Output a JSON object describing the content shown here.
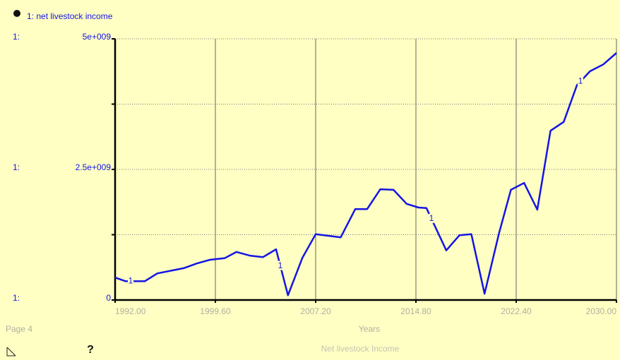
{
  "chart_data": {
    "type": "line",
    "page_label": "Page 4",
    "xlabel": "Years",
    "subtitle": "Net livestock Income",
    "help_icon": "?",
    "axis_prefix": "1:",
    "x": [
      1992.0,
      1992.8,
      1994.25,
      1995.2,
      1997.2,
      1998.2,
      1999.2,
      2000.3,
      2001.2,
      2002.2,
      2003.2,
      2004.2,
      2005.1,
      2006.2,
      2007.2,
      2009.1,
      2010.2,
      2011.1,
      2012.1,
      2013.1,
      2014.1,
      2015.0,
      2015.6,
      2017.1,
      2018.1,
      2019.0,
      2020.0,
      2021.1,
      2022.0,
      2023.0,
      2024.0,
      2025.0,
      2026.0,
      2027.0,
      2028.0,
      2029.0,
      2030.0
    ],
    "series": [
      {
        "name": "1: net  livestock income",
        "id": "1",
        "color": "#1414e6",
        "values": [
          430000000,
          360000000,
          360000000,
          510000000,
          610000000,
          700000000,
          770000000,
          800000000,
          920000000,
          850000000,
          820000000,
          970000000,
          90000000,
          810000000,
          1260000000,
          1200000000,
          1740000000,
          1740000000,
          2120000000,
          2110000000,
          1840000000,
          1770000000,
          1760000000,
          950000000,
          1240000000,
          1260000000,
          120000000,
          1280000000,
          2110000000,
          2240000000,
          1730000000,
          3240000000,
          3410000000,
          4110000000,
          4380000000,
          4510000000,
          4730000000
        ]
      }
    ],
    "xlim": [
      1992.0,
      2030.0
    ],
    "xticks": [
      {
        "value": 1992.0,
        "label": "1992.00"
      },
      {
        "value": 1999.6,
        "label": "1999.60"
      },
      {
        "value": 2007.2,
        "label": "2007.20"
      },
      {
        "value": 2014.8,
        "label": "2014.80"
      },
      {
        "value": 2022.4,
        "label": "2022.40"
      },
      {
        "value": 2030.0,
        "label": "2030.00"
      }
    ],
    "ylim": [
      0,
      5000000000
    ],
    "yticks": [
      0,
      {
        "value": 2500000000,
        "label": "2.5e+009"
      },
      {
        "value": 5000000000,
        "label": "5e+009"
      }
    ],
    "y_minor_ticks": [
      1250000000,
      3750000000
    ],
    "grid": true
  }
}
